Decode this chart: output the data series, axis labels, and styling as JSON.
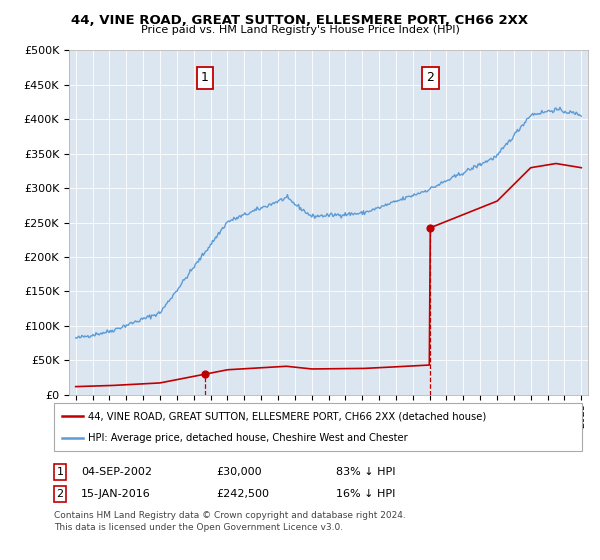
{
  "title": "44, VINE ROAD, GREAT SUTTON, ELLESMERE PORT, CH66 2XX",
  "subtitle": "Price paid vs. HM Land Registry's House Price Index (HPI)",
  "legend_line1": "44, VINE ROAD, GREAT SUTTON, ELLESMERE PORT, CH66 2XX (detached house)",
  "legend_line2": "HPI: Average price, detached house, Cheshire West and Chester",
  "footnote1": "Contains HM Land Registry data © Crown copyright and database right 2024.",
  "footnote2": "This data is licensed under the Open Government Licence v3.0.",
  "transaction1_date": "04-SEP-2002",
  "transaction1_price": "£30,000",
  "transaction1_hpi": "83% ↓ HPI",
  "transaction2_date": "15-JAN-2016",
  "transaction2_price": "£242,500",
  "transaction2_hpi": "16% ↓ HPI",
  "hpi_color": "#5b9bd5",
  "price_color": "#c00000",
  "background_color": "#ffffff",
  "plot_bg_color": "#dce6f1",
  "ylim_min": 0,
  "ylim_max": 500000,
  "transaction1_year": 2002.67,
  "transaction1_value": 30000,
  "transaction2_year": 2016.04,
  "transaction2_value": 242500,
  "xmin": 1995,
  "xmax": 2025
}
